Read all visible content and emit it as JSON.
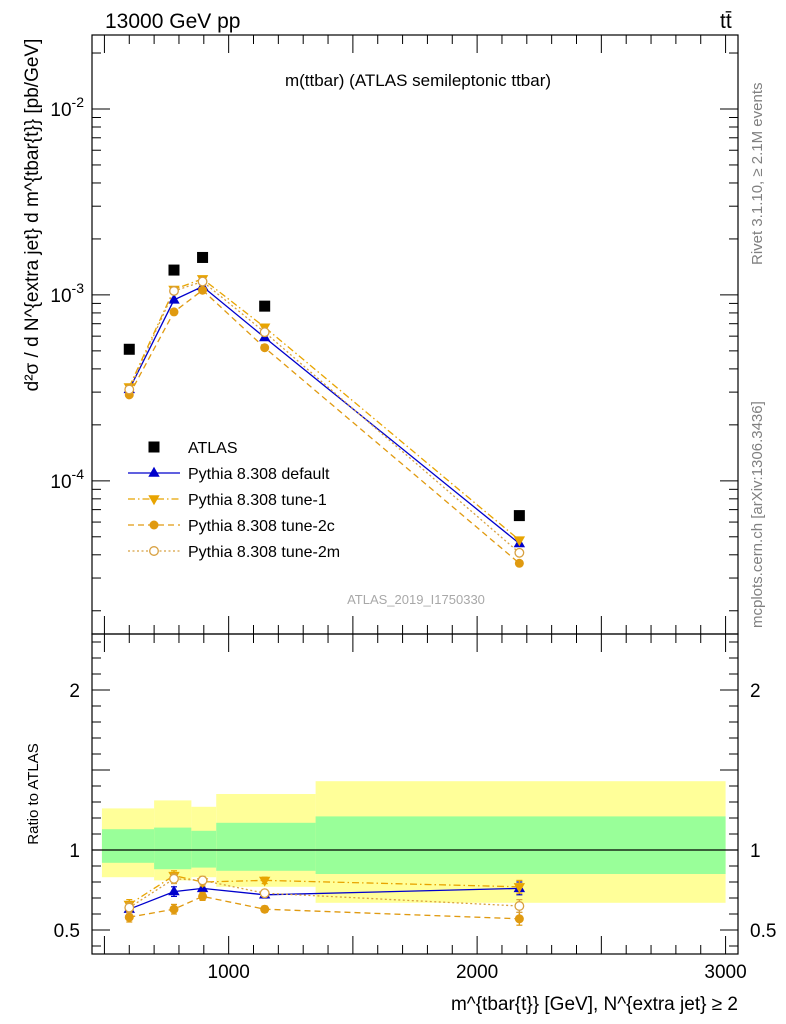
{
  "header": {
    "left": "13000 GeV pp",
    "right": "tt̄"
  },
  "side_labels": {
    "rivet": "Rivet 3.1.10, ≥ 2.1M events",
    "mcplots": "mcplots.cern.ch [arXiv:1306.3436]"
  },
  "chart_data": [
    {
      "type": "line",
      "panel": "main",
      "title": "m(ttbar) (ATLAS semileptonic ttbar)",
      "watermark": "ATLAS_2019_I1750330",
      "ylabel": "d²σ / d N^{extra jet} d m^{tbar{t}} [pb/GeV]",
      "yscale": "log",
      "ylim": [
        1.5e-05,
        0.025
      ],
      "xlim": [
        450,
        3050
      ],
      "y_ticks": [
        "10^-4",
        "10^-3",
        "10^-2"
      ],
      "legend_position": "lower-left",
      "x": [
        600,
        780,
        895,
        1145,
        2170
      ],
      "series": [
        {
          "name": "ATLAS",
          "color": "#000000",
          "marker": "square",
          "line": "none",
          "values": [
            0.00051,
            0.00136,
            0.00159,
            0.00087,
            6.5e-05
          ]
        },
        {
          "name": "Pythia 8.308 default",
          "color": "#0000cc",
          "marker": "triangle-up",
          "line": "solid",
          "values": [
            0.00031,
            0.00094,
            0.00111,
            0.00059,
            4.6e-05
          ]
        },
        {
          "name": "Pythia 8.308 tune-1",
          "color": "#e8a400",
          "marker": "triangle-down",
          "line": "dashdot",
          "values": [
            0.00032,
            0.00107,
            0.00122,
            0.00067,
            4.8e-05
          ]
        },
        {
          "name": "Pythia 8.308 tune-2c",
          "color": "#e09a10",
          "marker": "circle",
          "line": "dashed",
          "values": [
            0.00029,
            0.00081,
            0.00106,
            0.00052,
            3.6e-05
          ]
        },
        {
          "name": "Pythia 8.308 tune-2m",
          "color": "#d8a040",
          "marker": "open-circle",
          "line": "dotted",
          "values": [
            0.00031,
            0.00105,
            0.00118,
            0.00063,
            4.1e-05
          ]
        }
      ]
    },
    {
      "type": "line",
      "panel": "ratio",
      "ylabel": "Ratio to ATLAS",
      "xlabel": "m^{tbar{t}} [GeV], N^{extra jet} ≥ 2",
      "ylim": [
        0.35,
        2.35
      ],
      "xlim": [
        450,
        3050
      ],
      "x_ticks": [
        "1000",
        "2000",
        "3000"
      ],
      "y_ticks": [
        "0.5",
        "1",
        "2"
      ],
      "bands": {
        "edges": [
          490,
          700,
          850,
          950,
          1350,
          3000
        ],
        "inner": [
          [
            0.92,
            1.13
          ],
          [
            0.88,
            1.14
          ],
          [
            0.89,
            1.12
          ],
          [
            0.87,
            1.17
          ],
          [
            0.85,
            1.21
          ]
        ],
        "outer": [
          [
            0.83,
            1.26
          ],
          [
            0.81,
            1.31
          ],
          [
            0.83,
            1.27
          ],
          [
            0.77,
            1.35
          ],
          [
            0.67,
            1.43
          ]
        ],
        "inner_color": "#99ff99",
        "outer_color": "#ffff99"
      },
      "x": [
        600,
        780,
        895,
        1145,
        2170
      ],
      "series": [
        {
          "name": "Pythia 8.308 default",
          "values": [
            0.63,
            0.74,
            0.76,
            0.72,
            0.76
          ],
          "errors": [
            0.03,
            0.03,
            0.025,
            0.02,
            0.04
          ]
        },
        {
          "name": "Pythia 8.308 tune-1",
          "values": [
            0.66,
            0.84,
            0.8,
            0.81,
            0.77
          ],
          "errors": [
            0.03,
            0.03,
            0.025,
            0.02,
            0.04
          ]
        },
        {
          "name": "Pythia 8.308 tune-2c",
          "values": [
            0.58,
            0.63,
            0.71,
            0.63,
            0.57
          ],
          "errors": [
            0.03,
            0.03,
            0.025,
            0.02,
            0.04
          ]
        },
        {
          "name": "Pythia 8.308 tune-2m",
          "values": [
            0.64,
            0.82,
            0.81,
            0.73,
            0.65
          ],
          "errors": [
            0.03,
            0.03,
            0.025,
            0.02,
            0.04
          ]
        }
      ]
    }
  ]
}
